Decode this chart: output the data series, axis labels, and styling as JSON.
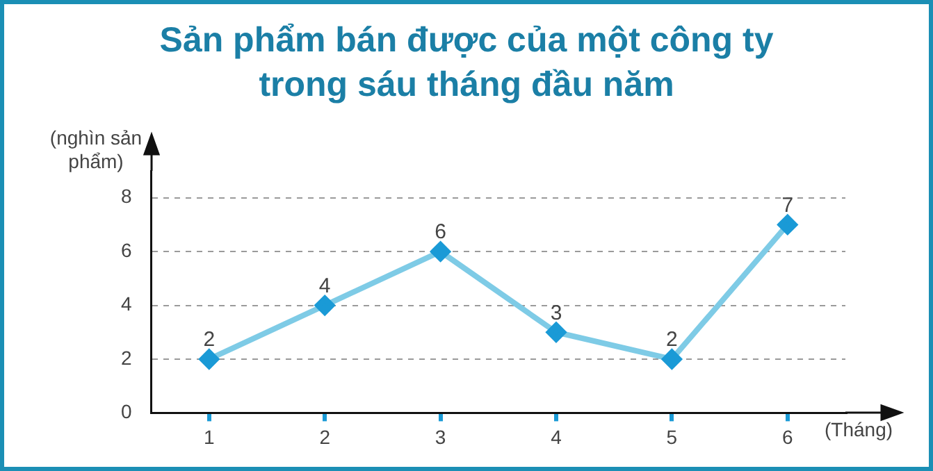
{
  "chart_data": {
    "type": "line",
    "title": "Sản phẩm bán được của một công ty trong sáu tháng đầu năm",
    "ylabel": "(nghìn sản phẩm)",
    "xlabel": "(Tháng)",
    "categories": [
      "1",
      "2",
      "3",
      "4",
      "5",
      "6"
    ],
    "series": [
      {
        "color": "#7ecbe6",
        "values": [
          2,
          4,
          6,
          3,
          2,
          7
        ]
      }
    ],
    "ylim": [
      0,
      9
    ],
    "yticks": [
      0,
      2,
      4,
      6,
      8
    ],
    "grid": "y",
    "legend": false,
    "marker": "diamond",
    "line_style": "solid",
    "data_labels": true
  }
}
